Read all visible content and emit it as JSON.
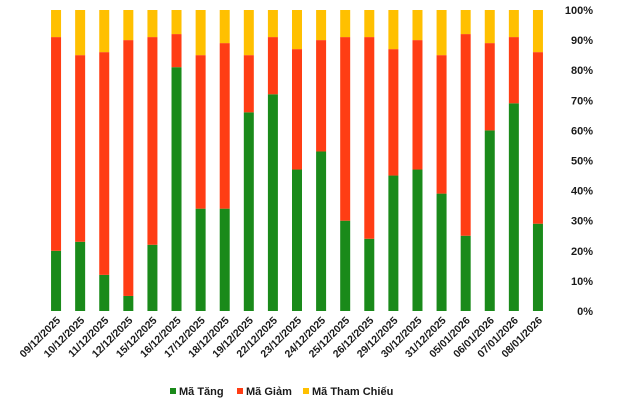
{
  "chart_data": {
    "type": "bar",
    "stacked": true,
    "normalized": true,
    "categories": [
      "09/12/2025",
      "10/12/2025",
      "11/12/2025",
      "12/12/2025",
      "15/12/2025",
      "16/12/2025",
      "17/12/2025",
      "18/12/2025",
      "19/12/2025",
      "22/12/2025",
      "23/12/2025",
      "24/12/2025",
      "25/12/2025",
      "26/12/2025",
      "29/12/2025",
      "30/12/2025",
      "31/12/2025",
      "05/01/2026",
      "06/01/2026",
      "07/01/2026",
      "08/01/2026"
    ],
    "series": [
      {
        "name": "Mã Tăng",
        "color": "#1a8a1a",
        "values": [
          20,
          23,
          12,
          5,
          22,
          81,
          34,
          34,
          66,
          72,
          47,
          53,
          30,
          24,
          45,
          47,
          39,
          25,
          60,
          69,
          29
        ]
      },
      {
        "name": "Mã Giảm",
        "color": "#ff3d14",
        "values": [
          71,
          62,
          74,
          85,
          69,
          11,
          51,
          55,
          19,
          19,
          40,
          37,
          61,
          67,
          42,
          43,
          46,
          67,
          29,
          22,
          57
        ]
      },
      {
        "name": "Mã Tham Chiếu",
        "color": "#ffc000",
        "values": [
          9,
          15,
          14,
          10,
          9,
          8,
          15,
          11,
          15,
          9,
          13,
          10,
          9,
          9,
          13,
          10,
          15,
          8,
          11,
          9,
          14
        ]
      }
    ],
    "yticks": [
      "0%",
      "10%",
      "20%",
      "30%",
      "40%",
      "50%",
      "60%",
      "70%",
      "80%",
      "90%",
      "100%"
    ],
    "ylim": [
      0,
      100
    ],
    "y_axis_position": "right",
    "grid": false,
    "legend_position": "bottom",
    "title": "",
    "xlabel": "",
    "ylabel": ""
  }
}
